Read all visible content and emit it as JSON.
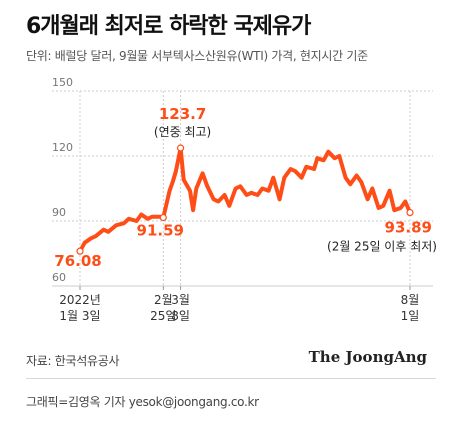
{
  "header": {
    "title": "6개월래 최저로 하락한 국제유가",
    "subtitle": "단위: 배럴당 달러, 9월물 서부텍사스산원유(WTI) 가격, 현지시간 기준"
  },
  "footer": {
    "source": "자료: 한국석유공사",
    "logo": "The JoongAng",
    "credit": "그래픽=김영옥 기자 yesok@joongang.co.kr"
  },
  "colors": {
    "line": "#ff4d17",
    "highlight_text": "#ff4d17",
    "grid": "#cccccc",
    "axis_text": "#777777"
  },
  "chart_data": {
    "type": "line",
    "title": "6개월래 최저로 하락한 국제유가",
    "ylabel": "단위: 배럴당 달러",
    "ylim": [
      60,
      150
    ],
    "yticks": [
      60,
      90,
      120,
      150
    ],
    "grid": true,
    "x_start": "2022-01-03",
    "x_end": "2022-08-01",
    "xticks": [
      {
        "date": "2022-01-03",
        "line1": "2022년",
        "line2": "1월 3일"
      },
      {
        "date": "2022-02-25",
        "line1": "2월",
        "line2": "25일"
      },
      {
        "date": "2022-03-08",
        "line1": "3월",
        "line2": "8일"
      },
      {
        "date": "2022-08-01",
        "line1": "8월",
        "line2": "1일"
      }
    ],
    "series": [
      {
        "x": [
          "2022-01-03",
          "2022-01-06",
          "2022-01-10",
          "2022-01-13",
          "2022-01-18",
          "2022-01-21",
          "2022-01-26",
          "2022-01-31",
          "2022-02-03",
          "2022-02-08",
          "2022-02-11",
          "2022-02-15",
          "2022-02-18",
          "2022-02-23",
          "2022-02-25",
          "2022-03-01",
          "2022-03-03",
          "2022-03-05",
          "2022-03-08",
          "2022-03-10",
          "2022-03-14",
          "2022-03-16",
          "2022-03-18",
          "2022-03-22",
          "2022-03-25",
          "2022-03-29",
          "2022-04-01",
          "2022-04-05",
          "2022-04-08",
          "2022-04-12",
          "2022-04-15",
          "2022-04-19",
          "2022-04-22",
          "2022-04-26",
          "2022-04-29",
          "2022-05-03",
          "2022-05-06",
          "2022-05-10",
          "2022-05-13",
          "2022-05-17",
          "2022-05-20",
          "2022-05-24",
          "2022-05-27",
          "2022-06-01",
          "2022-06-03",
          "2022-06-07",
          "2022-06-10",
          "2022-06-14",
          "2022-06-17",
          "2022-06-21",
          "2022-06-24",
          "2022-06-28",
          "2022-07-01",
          "2022-07-05",
          "2022-07-08",
          "2022-07-12",
          "2022-07-15",
          "2022-07-19",
          "2022-07-22",
          "2022-07-26",
          "2022-07-29",
          "2022-08-01"
        ],
        "values": [
          76.08,
          80,
          82,
          83,
          86,
          85,
          88,
          89,
          91,
          90,
          93,
          91,
          92,
          92,
          91.59,
          104,
          108,
          113,
          123.7,
          109,
          104,
          95,
          105,
          112,
          106,
          100,
          99,
          102,
          97,
          105,
          106,
          102,
          103,
          102,
          105,
          104,
          110,
          100,
          110,
          114,
          113,
          110,
          115,
          114,
          119,
          118,
          122,
          119,
          120,
          110,
          107,
          111,
          108,
          100,
          105,
          96,
          97,
          104,
          95,
          96,
          99,
          93.89
        ]
      }
    ],
    "annotations": [
      {
        "date": "2022-01-03",
        "value": 76.08,
        "label": "76.08"
      },
      {
        "date": "2022-02-25",
        "value": 91.59,
        "label": "91.59"
      },
      {
        "date": "2022-03-08",
        "value": 123.7,
        "label": "123.7",
        "note": "(연중 최고)"
      },
      {
        "date": "2022-08-01",
        "value": 93.89,
        "label": "93.89",
        "note": "(2월 25일 이후 최저)"
      }
    ]
  }
}
